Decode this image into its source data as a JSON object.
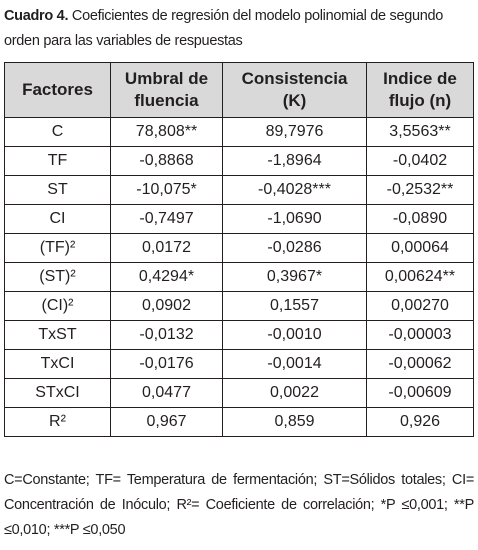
{
  "caption": {
    "label": "Cuadro 4.",
    "text": "Coeficientes de regresión del modelo polinomial de segundo orden para las variables de respuestas"
  },
  "table": {
    "headers": [
      [
        "Factores"
      ],
      [
        "Umbral de",
        "fluencia"
      ],
      [
        "Consistencia",
        "(K)"
      ],
      [
        "Indice de",
        "flujo (n)"
      ]
    ],
    "rows": [
      [
        "C",
        "78,808**",
        "89,7976",
        "3,5563**"
      ],
      [
        "TF",
        "-0,8868",
        "-1,8964",
        "-0,0402"
      ],
      [
        "ST",
        "-10,075*",
        "-0,4028***",
        "-0,2532**"
      ],
      [
        "CI",
        "-0,7497",
        "-1,0690",
        "-0,0890"
      ],
      [
        "(TF)²",
        "0,0172",
        "-0,0286",
        "0,00064"
      ],
      [
        "(ST)²",
        "0,4294*",
        "0,3967*",
        "0,00624**"
      ],
      [
        "(CI)²",
        "0,0902",
        "0,1557",
        "0,00270"
      ],
      [
        "TxST",
        "-0,0132",
        "-0,0010",
        "-0,00003"
      ],
      [
        "TxCI",
        "-0,0176",
        "-0,0014",
        "-0,00062"
      ],
      [
        "STxCI",
        "0,0477",
        "0,0022",
        "-0,00609"
      ],
      [
        "R²",
        "0,967",
        "0,859",
        "0,926"
      ]
    ]
  },
  "footnote": "C=Constante; TF= Temperatura de fermentación; ST=Sólidos totales; CI= Concentración de Inóculo; R²= Coeficiente de correlación; *P ≤0,001; **P ≤0,010; ***P ≤0,050"
}
